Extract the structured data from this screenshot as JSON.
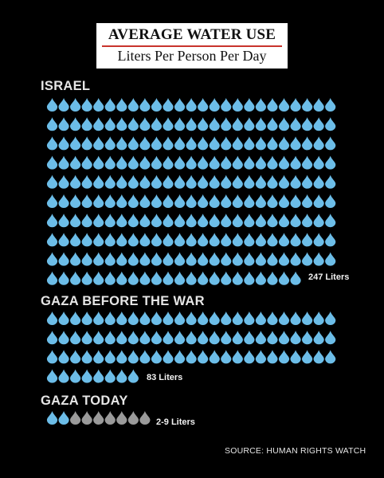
{
  "title": "AVERAGE WATER USE",
  "subtitle": "Liters Per Person Per Day",
  "source": "SOURCE: HUMAN RIGHTS WATCH",
  "colors": {
    "blue_drop": "#6cbde8",
    "gray_drop": "#9a9a9a",
    "accent": "#c8342c"
  },
  "icon": "water-drop-icon",
  "chart_data": {
    "type": "pictogram",
    "title": "AVERAGE WATER USE",
    "subtitle": "Liters Per Person Per Day",
    "unit": "Liters",
    "series": [
      {
        "name": "ISRAEL",
        "value_label": "247 Liters",
        "value": 247
      },
      {
        "name": "GAZA BEFORE THE WAR",
        "value_label": "83 Liters",
        "value": 83
      },
      {
        "name": "GAZA TODAY",
        "value_label": "2-9 Liters",
        "value": [
          2,
          9
        ]
      }
    ]
  }
}
